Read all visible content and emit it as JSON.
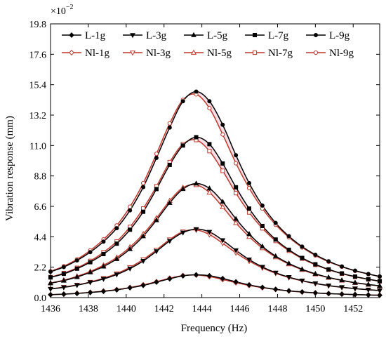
{
  "chart_data": {
    "type": "line",
    "xlabel": "Frequency (Hz)",
    "ylabel": "Vibration response (mm)",
    "multiplier_label": "×10",
    "multiplier_exponent": "−2",
    "xlim": [
      1436,
      1453.4
    ],
    "ylim": [
      0,
      19.8
    ],
    "x_ticks": [
      "1436",
      "1438",
      "1440",
      "1442",
      "1444",
      "1446",
      "1448",
      "1450",
      "1452"
    ],
    "y_ticks": [
      "0.0",
      "2.2",
      "4.4",
      "6.6",
      "8.8",
      "11.0",
      "13.2",
      "15.4",
      "17.6",
      "19.8"
    ],
    "grid": false,
    "legend_position": "top",
    "colors": {
      "linear": "#000000",
      "nonlinear": "#c0392b",
      "band": "#f6dfe6"
    },
    "x": [
      1436,
      1436.7,
      1437.4,
      1438.1,
      1438.8,
      1439.5,
      1440.2,
      1440.9,
      1441.6,
      1442.3,
      1443.0,
      1443.7,
      1444.4,
      1445.1,
      1445.8,
      1446.5,
      1447.2,
      1447.9,
      1448.6,
      1449.3,
      1450.0,
      1450.7,
      1451.4,
      1452.1,
      1452.8,
      1453.4
    ],
    "series": [
      {
        "name": "L-1g",
        "group": "linear",
        "marker": "diamond",
        "values": [
          0.21,
          0.25,
          0.3,
          0.37,
          0.45,
          0.56,
          0.71,
          0.88,
          1.12,
          1.36,
          1.57,
          1.65,
          1.58,
          1.38,
          1.14,
          0.92,
          0.74,
          0.6,
          0.49,
          0.41,
          0.34,
          0.29,
          0.25,
          0.22,
          0.19,
          0.17
        ]
      },
      {
        "name": "L-3g",
        "group": "linear",
        "marker": "triangle-down",
        "values": [
          0.62,
          0.74,
          0.9,
          1.1,
          1.35,
          1.67,
          2.1,
          2.65,
          3.35,
          4.1,
          4.7,
          4.95,
          4.75,
          4.15,
          3.42,
          2.75,
          2.22,
          1.8,
          1.48,
          1.23,
          1.03,
          0.87,
          0.75,
          0.65,
          0.57,
          0.51
        ]
      },
      {
        "name": "L-5g",
        "group": "linear",
        "marker": "triangle-up",
        "values": [
          1.04,
          1.23,
          1.49,
          1.83,
          2.25,
          2.79,
          3.51,
          4.44,
          5.6,
          6.85,
          7.85,
          8.25,
          7.9,
          6.93,
          5.7,
          4.6,
          3.7,
          3.0,
          2.47,
          2.05,
          1.72,
          1.46,
          1.25,
          1.08,
          0.95,
          0.85
        ]
      },
      {
        "name": "L-7g",
        "group": "linear",
        "marker": "square",
        "values": [
          1.46,
          1.72,
          2.09,
          2.56,
          3.15,
          3.9,
          4.91,
          6.21,
          7.85,
          9.6,
          11.0,
          11.6,
          11.1,
          9.7,
          7.98,
          6.44,
          5.18,
          4.2,
          3.46,
          2.87,
          2.41,
          2.04,
          1.75,
          1.52,
          1.33,
          1.19
        ]
      },
      {
        "name": "L-9g",
        "group": "linear",
        "marker": "circle",
        "values": [
          1.87,
          2.21,
          2.69,
          3.29,
          4.05,
          5.02,
          6.31,
          7.99,
          10.1,
          12.3,
          14.2,
          14.9,
          14.2,
          12.5,
          10.3,
          8.28,
          6.66,
          5.4,
          4.44,
          3.69,
          3.1,
          2.63,
          2.25,
          1.95,
          1.71,
          1.53
        ]
      },
      {
        "name": "Nl-1g",
        "group": "nonlinear",
        "marker": "diamond-open",
        "values": [
          0.21,
          0.25,
          0.31,
          0.38,
          0.47,
          0.58,
          0.73,
          0.92,
          1.15,
          1.4,
          1.59,
          1.63,
          1.52,
          1.31,
          1.08,
          0.88,
          0.72,
          0.59,
          0.48,
          0.4,
          0.34,
          0.29,
          0.25,
          0.22,
          0.19,
          0.17
        ]
      },
      {
        "name": "Nl-3g",
        "group": "nonlinear",
        "marker": "triangle-down-open",
        "values": [
          0.63,
          0.76,
          0.92,
          1.13,
          1.4,
          1.74,
          2.19,
          2.76,
          3.45,
          4.2,
          4.77,
          4.89,
          4.56,
          3.93,
          3.24,
          2.64,
          2.15,
          1.76,
          1.45,
          1.21,
          1.01,
          0.86,
          0.74,
          0.65,
          0.57,
          0.51
        ]
      },
      {
        "name": "Nl-5g",
        "group": "nonlinear",
        "marker": "triangle-up-open",
        "values": [
          1.06,
          1.26,
          1.54,
          1.89,
          2.34,
          2.9,
          3.65,
          4.6,
          5.75,
          7.0,
          7.95,
          8.15,
          7.6,
          6.55,
          5.4,
          4.4,
          3.58,
          2.93,
          2.42,
          2.01,
          1.69,
          1.44,
          1.24,
          1.07,
          0.94,
          0.84
        ]
      },
      {
        "name": "Nl-7g",
        "group": "nonlinear",
        "marker": "square-open",
        "values": [
          1.48,
          1.77,
          2.15,
          2.65,
          3.28,
          4.06,
          5.11,
          6.44,
          8.05,
          9.8,
          11.1,
          11.4,
          10.6,
          9.17,
          7.56,
          6.16,
          5.01,
          4.1,
          3.39,
          2.82,
          2.37,
          2.02,
          1.73,
          1.5,
          1.32,
          1.18
        ]
      },
      {
        "name": "Nl-9g",
        "group": "nonlinear",
        "marker": "circle-open",
        "values": [
          1.9,
          2.27,
          2.77,
          3.41,
          4.21,
          5.22,
          6.57,
          8.28,
          10.4,
          12.6,
          14.3,
          14.7,
          13.7,
          11.8,
          9.72,
          7.92,
          6.44,
          5.27,
          4.36,
          3.63,
          3.05,
          2.59,
          2.23,
          1.93,
          1.7,
          1.52
        ]
      }
    ]
  }
}
